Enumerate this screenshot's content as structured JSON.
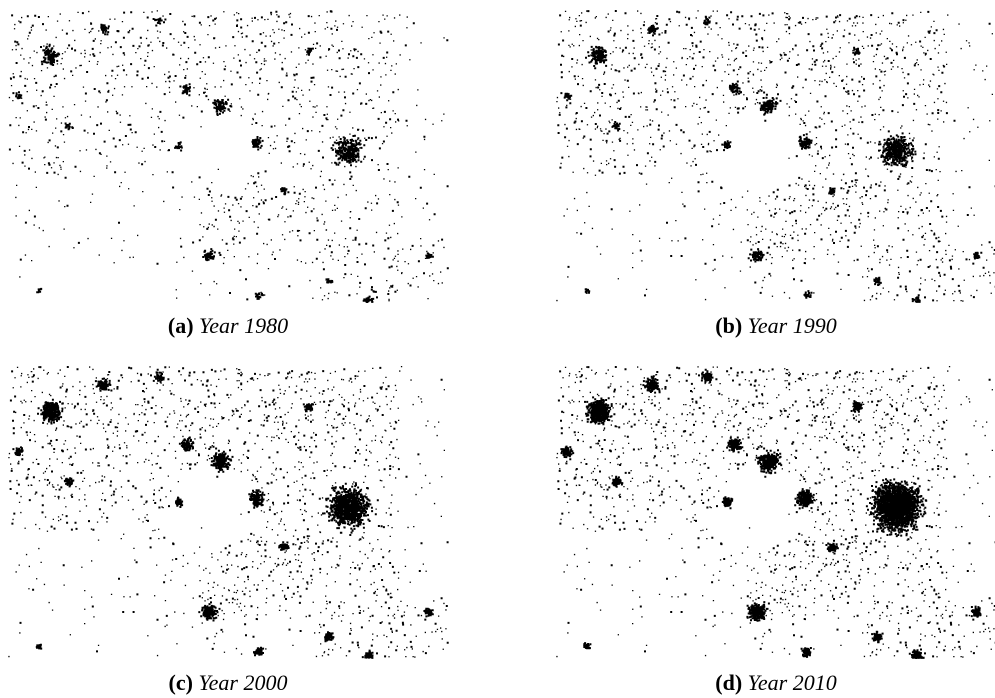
{
  "figure": {
    "panels": [
      {
        "label": "(a)",
        "caption": "Year 1980"
      },
      {
        "label": "(b)",
        "caption": "Year 1990"
      },
      {
        "label": "(c)",
        "caption": "Year 2000"
      },
      {
        "label": "(d)",
        "caption": "Year 2010"
      }
    ]
  }
}
